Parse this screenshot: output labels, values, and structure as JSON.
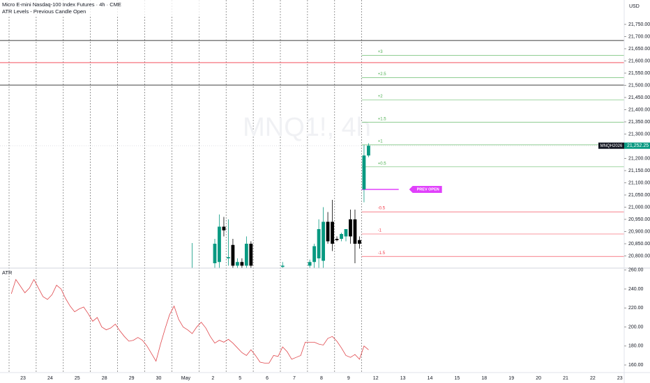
{
  "chart_data": {
    "type": "candlestick",
    "title": "Micro E-mini Nasdaq-100 Index Futures · 4h · CME",
    "subtitle": "ATR Levels - Previous Candle Open",
    "watermark": "MNQ1!, 4h",
    "currency": "USD",
    "categories": [
      "23",
      "24",
      "25",
      "28",
      "29",
      "30",
      "May",
      "2",
      "5",
      "6",
      "7",
      "8",
      "9",
      "12",
      "13",
      "14",
      "15",
      "18",
      "19",
      "20",
      "21",
      "22",
      "23"
    ],
    "ylim": [
      20750,
      21850
    ],
    "yticks": [
      {
        "value": 20800,
        "label": "20,800.00"
      },
      {
        "value": 20850,
        "label": "20,850.00"
      },
      {
        "value": 20900,
        "label": "20,900.00"
      },
      {
        "value": 20950,
        "label": "20,950.00"
      },
      {
        "value": 21000,
        "label": "21,000.00"
      },
      {
        "value": 21050,
        "label": "21,050.00"
      },
      {
        "value": 21100,
        "label": "21,100.00"
      },
      {
        "value": 21150,
        "label": "21,150.00"
      },
      {
        "value": 21200,
        "label": "21,200.00"
      },
      {
        "value": 21300,
        "label": "21,300.00"
      },
      {
        "value": 21350,
        "label": "21,350.00"
      },
      {
        "value": 21400,
        "label": "21,400.00"
      },
      {
        "value": 21450,
        "label": "21,450.00"
      },
      {
        "value": 21500,
        "label": "21,500.00"
      },
      {
        "value": 21550,
        "label": "21,550.00"
      },
      {
        "value": 21600,
        "label": "21,600.00"
      },
      {
        "value": 21650,
        "label": "21,650.00"
      },
      {
        "value": 21700,
        "label": "21,700.00"
      },
      {
        "value": 21750,
        "label": "21,750.00"
      }
    ],
    "candles": {
      "up_color": "#089981",
      "down_color": "#000000",
      "open": [
        null,
        null,
        null,
        null,
        null,
        null,
        null,
        null,
        null,
        null,
        null,
        null,
        null,
        null,
        null,
        null,
        null,
        null,
        null,
        null,
        null,
        null,
        null,
        null,
        null,
        null,
        null,
        null,
        null,
        null,
        null,
        null,
        null,
        null,
        null,
        null,
        null,
        null,
        null,
        null,
        20740,
        null,
        null,
        null,
        null,
        20770,
        20775,
        20920,
        20790,
        20845,
        20760,
        20775,
        20760,
        20850,
        null,
        null,
        null,
        null,
        null,
        null,
        20755,
        null,
        null,
        null,
        null,
        null,
        20760,
        20775,
        20790,
        20780,
        20940,
        20940,
        20870,
        20870,
        20880,
        20950,
        20950,
        20865,
        21073,
        21212
      ],
      "high": [
        null,
        null,
        null,
        null,
        null,
        null,
        null,
        null,
        null,
        null,
        null,
        null,
        null,
        null,
        null,
        null,
        null,
        null,
        null,
        null,
        null,
        null,
        null,
        null,
        null,
        null,
        null,
        null,
        null,
        null,
        null,
        null,
        null,
        null,
        null,
        null,
        null,
        null,
        null,
        null,
        20853,
        null,
        null,
        null,
        null,
        20870,
        20970,
        20960,
        20950,
        20870,
        20790,
        20790,
        20880,
        20860,
        null,
        null,
        null,
        null,
        null,
        null,
        20775,
        null,
        null,
        null,
        null,
        null,
        20785,
        20850,
        20950,
        21000,
        20980,
        21030,
        20880,
        20895,
        20905,
        20990,
        20990,
        20880,
        21255,
        21262
      ],
      "low": [
        null,
        null,
        null,
        null,
        null,
        null,
        null,
        null,
        null,
        null,
        null,
        null,
        null,
        null,
        null,
        null,
        null,
        null,
        null,
        null,
        null,
        null,
        null,
        null,
        null,
        null,
        null,
        null,
        null,
        null,
        null,
        null,
        null,
        null,
        null,
        null,
        null,
        null,
        null,
        null,
        20700,
        null,
        null,
        null,
        null,
        20740,
        20740,
        20880,
        20760,
        20740,
        20740,
        20740,
        20740,
        20740,
        null,
        null,
        null,
        null,
        null,
        null,
        20740,
        null,
        null,
        null,
        null,
        null,
        20740,
        20740,
        20740,
        20740,
        20850,
        20820,
        20860,
        20860,
        20860,
        20850,
        20770,
        20830,
        21020,
        21205
      ],
      "close": [
        null,
        null,
        null,
        null,
        null,
        null,
        null,
        null,
        null,
        null,
        null,
        null,
        null,
        null,
        null,
        null,
        null,
        null,
        null,
        null,
        null,
        null,
        null,
        null,
        null,
        null,
        null,
        null,
        null,
        null,
        null,
        null,
        null,
        null,
        null,
        null,
        null,
        null,
        null,
        null,
        20745,
        null,
        null,
        null,
        null,
        20850,
        20920,
        20905,
        20795,
        20760,
        20775,
        20760,
        20850,
        20760,
        null,
        null,
        null,
        null,
        null,
        null,
        20760,
        null,
        null,
        null,
        null,
        null,
        20775,
        20840,
        20910,
        20940,
        20860,
        20850,
        20865,
        20890,
        20910,
        20880,
        20850,
        20850,
        21212,
        21252.25
      ]
    },
    "last_price": {
      "symbol": "MNQH2026",
      "value": 21252.25,
      "label": "21,252.25",
      "color": "#089981"
    },
    "reference_lines": [
      {
        "value": 21684,
        "color": "#000000"
      },
      {
        "value": 21593,
        "color": "#f23645"
      },
      {
        "value": 21501,
        "color": "#000000"
      }
    ],
    "prev_open": {
      "label": "PREV OPEN",
      "value": 21073,
      "color": "#e040fb"
    },
    "atr_levels": {
      "labels": [
        "+3",
        "+2.5",
        "+2",
        "+1.5",
        "+1",
        "+0.5",
        "-0.5",
        "-1",
        "-1.5"
      ],
      "values": [
        21623,
        21531,
        21440,
        21348,
        21256,
        21165,
        20981,
        20890,
        20798
      ],
      "colors": [
        "#4caf50",
        "#4caf50",
        "#4caf50",
        "#4caf50",
        "#4caf50",
        "#4caf50",
        "#f23645",
        "#f23645",
        "#f23645"
      ]
    },
    "indicator": {
      "name": "ATR",
      "color": "#e0474c",
      "ylim": [
        152,
        262
      ],
      "yticks": [
        {
          "value": 160,
          "label": "160.00"
        },
        {
          "value": 180,
          "label": "180.00"
        },
        {
          "value": 200,
          "label": "200.00"
        },
        {
          "value": 220,
          "label": "220.00"
        },
        {
          "value": 240,
          "label": "240.00"
        },
        {
          "value": 260,
          "label": "260.00"
        }
      ],
      "values": [
        235,
        250,
        243,
        236,
        241,
        250,
        241,
        232,
        229,
        234,
        244,
        240,
        230,
        222,
        216,
        219,
        221,
        214,
        206,
        210,
        200,
        197,
        199,
        203,
        196,
        190,
        185,
        186,
        189,
        186,
        180,
        172,
        164,
        182,
        198,
        213,
        222,
        208,
        200,
        197,
        193,
        200,
        205,
        199,
        190,
        183,
        186,
        184,
        187,
        183,
        178,
        173,
        170,
        176,
        170,
        163,
        162,
        162,
        170,
        169,
        179,
        174,
        166,
        168,
        170,
        184,
        184,
        184,
        182,
        181,
        188,
        190,
        185,
        178,
        170,
        168,
        171,
        166,
        180,
        176
      ]
    }
  }
}
